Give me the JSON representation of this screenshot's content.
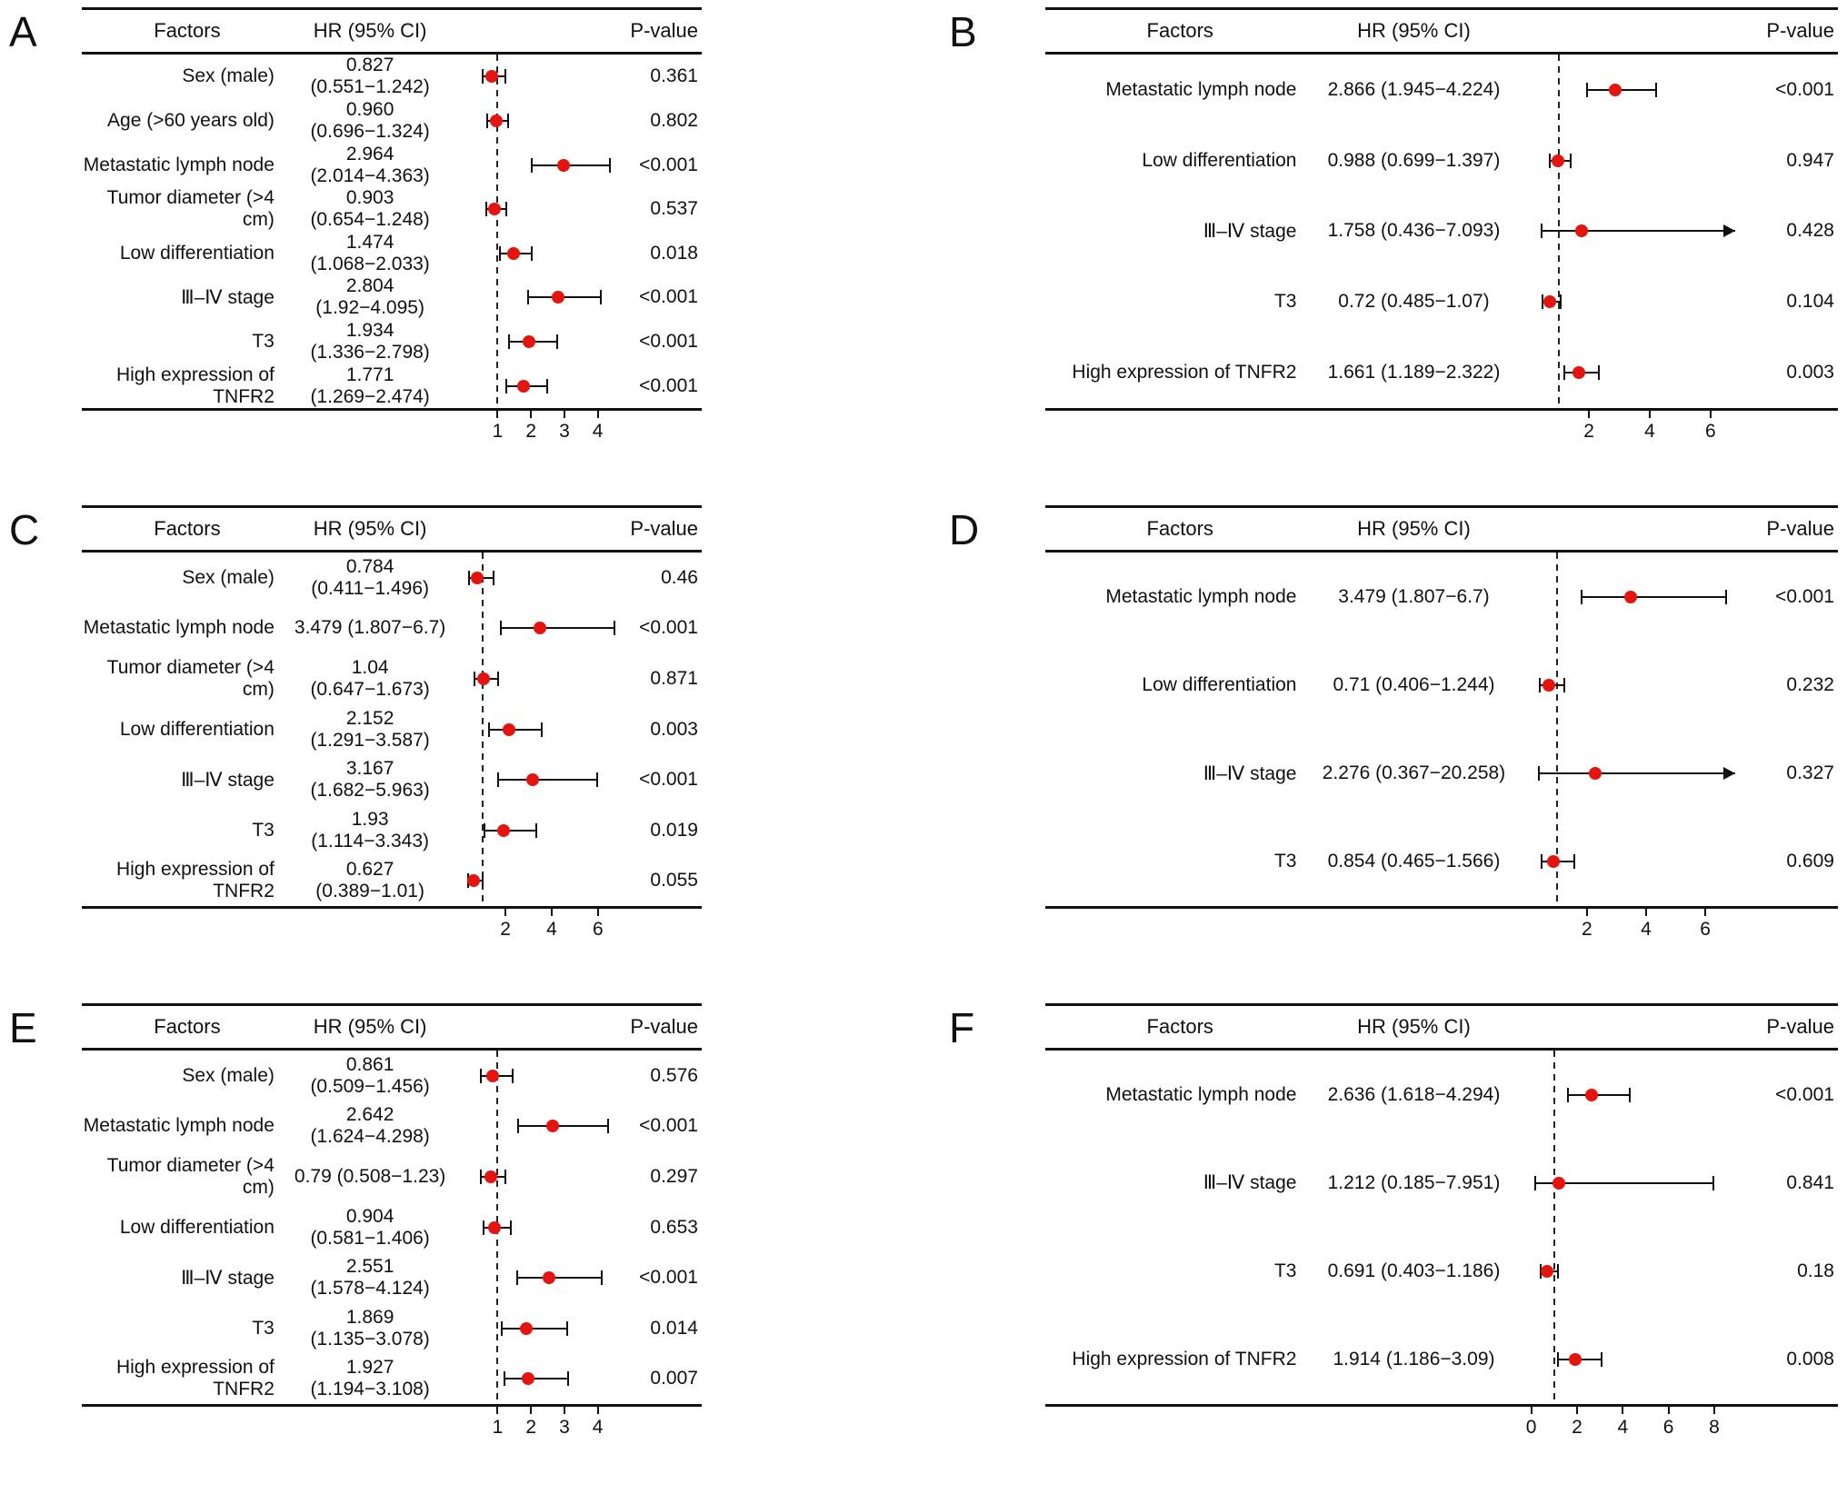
{
  "colors": {
    "dot": "#e8130c",
    "line": "#111111",
    "text": "#111111",
    "background": "#ffffff",
    "reference_line": "#222222"
  },
  "chart_data": [
    {
      "type": "forest",
      "panel": "A",
      "columns": [
        "Factors",
        "HR (95% CI)",
        "P-value"
      ],
      "axis": {
        "min": -0.5,
        "max": 4.7,
        "ticks": [
          1,
          2,
          3,
          4
        ],
        "ref": 1
      },
      "rows": [
        {
          "factor": "Sex (male)",
          "hr_label": "0.827 (0.551−1.242)",
          "hr": 0.827,
          "ci_low": 0.551,
          "ci_high": 1.242,
          "p_value": "0.361"
        },
        {
          "factor": "Age (>60 years old)",
          "hr_label": "0.960 (0.696−1.324)",
          "hr": 0.96,
          "ci_low": 0.696,
          "ci_high": 1.324,
          "p_value": "0.802"
        },
        {
          "factor": "Metastatic lymph node",
          "hr_label": "2.964 (2.014−4.363)",
          "hr": 2.964,
          "ci_low": 2.014,
          "ci_high": 4.363,
          "p_value": "<0.001"
        },
        {
          "factor": "Tumor diameter (>4 cm)",
          "hr_label": "0.903 (0.654−1.248)",
          "hr": 0.903,
          "ci_low": 0.654,
          "ci_high": 1.248,
          "p_value": "0.537"
        },
        {
          "factor": "Low differentiation",
          "hr_label": "1.474 (1.068−2.033)",
          "hr": 1.474,
          "ci_low": 1.068,
          "ci_high": 2.033,
          "p_value": "0.018"
        },
        {
          "factor": "Ⅲ–Ⅳ stage",
          "hr_label": "2.804 (1.92−4.095)",
          "hr": 2.804,
          "ci_low": 1.92,
          "ci_high": 4.095,
          "p_value": "<0.001"
        },
        {
          "factor": "T3",
          "hr_label": "1.934 (1.336−2.798)",
          "hr": 1.934,
          "ci_low": 1.336,
          "ci_high": 2.798,
          "p_value": "<0.001"
        },
        {
          "factor": "High expression of TNFR2",
          "hr_label": "1.771 (1.269−2.474)",
          "hr": 1.771,
          "ci_low": 1.269,
          "ci_high": 2.474,
          "p_value": "<0.001"
        }
      ]
    },
    {
      "type": "forest",
      "panel": "B",
      "columns": [
        "Factors",
        "HR (95% CI)",
        "P-value"
      ],
      "axis": {
        "min": -0.5,
        "max": 6.8,
        "ticks": [
          2,
          4,
          6
        ],
        "ref": 1
      },
      "rows": [
        {
          "factor": "Metastatic lymph node",
          "hr_label": "2.866 (1.945−4.224)",
          "hr": 2.866,
          "ci_low": 1.945,
          "ci_high": 4.224,
          "p_value": "<0.001"
        },
        {
          "factor": "Low differentiation",
          "hr_label": "0.988 (0.699−1.397)",
          "hr": 0.988,
          "ci_low": 0.699,
          "ci_high": 1.397,
          "p_value": "0.947"
        },
        {
          "factor": "Ⅲ–Ⅳ stage",
          "hr_label": "1.758 (0.436−7.093)",
          "hr": 1.758,
          "ci_low": 0.436,
          "ci_high": 7.093,
          "p_value": "0.428"
        },
        {
          "factor": "T3",
          "hr_label": "0.72 (0.485−1.07)",
          "hr": 0.72,
          "ci_low": 0.485,
          "ci_high": 1.07,
          "p_value": "0.104"
        },
        {
          "factor": "High expression of TNFR2",
          "hr_label": "1.661 (1.189−2.322)",
          "hr": 1.661,
          "ci_low": 1.189,
          "ci_high": 2.322,
          "p_value": "0.003"
        }
      ]
    },
    {
      "type": "forest",
      "panel": "C",
      "columns": [
        "Factors",
        "HR (95% CI)",
        "P-value"
      ],
      "axis": {
        "min": -0.5,
        "max": 7.0,
        "ticks": [
          2,
          4,
          6
        ],
        "ref": 1
      },
      "rows": [
        {
          "factor": "Sex (male)",
          "hr_label": "0.784 (0.411−1.496)",
          "hr": 0.784,
          "ci_low": 0.411,
          "ci_high": 1.496,
          "p_value": "0.46"
        },
        {
          "factor": "Metastatic lymph node",
          "hr_label": "3.479 (1.807−6.7)",
          "hr": 3.479,
          "ci_low": 1.807,
          "ci_high": 6.7,
          "p_value": "<0.001"
        },
        {
          "factor": "Tumor diameter (>4 cm)",
          "hr_label": "1.04 (0.647−1.673)",
          "hr": 1.04,
          "ci_low": 0.647,
          "ci_high": 1.673,
          "p_value": "0.871"
        },
        {
          "factor": "Low differentiation",
          "hr_label": "2.152 (1.291−3.587)",
          "hr": 2.152,
          "ci_low": 1.291,
          "ci_high": 3.587,
          "p_value": "0.003"
        },
        {
          "factor": "Ⅲ–Ⅳ stage",
          "hr_label": "3.167 (1.682−5.963)",
          "hr": 3.167,
          "ci_low": 1.682,
          "ci_high": 5.963,
          "p_value": "<0.001"
        },
        {
          "factor": "T3",
          "hr_label": "1.93 (1.114−3.343)",
          "hr": 1.93,
          "ci_low": 1.114,
          "ci_high": 3.343,
          "p_value": "0.019"
        },
        {
          "factor": "High expression of TNFR2",
          "hr_label": "0.627 (0.389−1.01)",
          "hr": 0.627,
          "ci_low": 0.389,
          "ci_high": 1.01,
          "p_value": "0.055"
        }
      ]
    },
    {
      "type": "forest",
      "panel": "D",
      "columns": [
        "Factors",
        "HR (95% CI)",
        "P-value"
      ],
      "axis": {
        "min": -0.5,
        "max": 7.0,
        "ticks": [
          2,
          4,
          6
        ],
        "ref": 1
      },
      "rows": [
        {
          "factor": "Metastatic lymph node",
          "hr_label": "3.479 (1.807−6.7)",
          "hr": 3.479,
          "ci_low": 1.807,
          "ci_high": 6.7,
          "p_value": "<0.001"
        },
        {
          "factor": "Low differentiation",
          "hr_label": "0.71 (0.406−1.244)",
          "hr": 0.71,
          "ci_low": 0.406,
          "ci_high": 1.244,
          "p_value": "0.232"
        },
        {
          "factor": "Ⅲ–Ⅳ stage",
          "hr_label": "2.276 (0.367−20.258)",
          "hr": 2.276,
          "ci_low": 0.367,
          "ci_high": 20.258,
          "p_value": "0.327"
        },
        {
          "factor": "T3",
          "hr_label": "0.854 (0.465−1.566)",
          "hr": 0.854,
          "ci_low": 0.465,
          "ci_high": 1.566,
          "p_value": "0.609"
        }
      ]
    },
    {
      "type": "forest",
      "panel": "E",
      "columns": [
        "Factors",
        "HR (95% CI)",
        "P-value"
      ],
      "axis": {
        "min": -0.5,
        "max": 4.7,
        "ticks": [
          1,
          2,
          3,
          4
        ],
        "ref": 1
      },
      "rows": [
        {
          "factor": "Sex (male)",
          "hr_label": "0.861 (0.509−1.456)",
          "hr": 0.861,
          "ci_low": 0.509,
          "ci_high": 1.456,
          "p_value": "0.576"
        },
        {
          "factor": "Metastatic lymph node",
          "hr_label": "2.642 (1.624−4.298)",
          "hr": 2.642,
          "ci_low": 1.624,
          "ci_high": 4.298,
          "p_value": "<0.001"
        },
        {
          "factor": "Tumor diameter (>4 cm)",
          "hr_label": "0.79 (0.508−1.23)",
          "hr": 0.79,
          "ci_low": 0.508,
          "ci_high": 1.23,
          "p_value": "0.297"
        },
        {
          "factor": "Low differentiation",
          "hr_label": "0.904 (0.581−1.406)",
          "hr": 0.904,
          "ci_low": 0.581,
          "ci_high": 1.406,
          "p_value": "0.653"
        },
        {
          "factor": "Ⅲ–Ⅳ stage",
          "hr_label": "2.551 (1.578−4.124)",
          "hr": 2.551,
          "ci_low": 1.578,
          "ci_high": 4.124,
          "p_value": "<0.001"
        },
        {
          "factor": "T3",
          "hr_label": "1.869 (1.135−3.078)",
          "hr": 1.869,
          "ci_low": 1.135,
          "ci_high": 3.078,
          "p_value": "0.014"
        },
        {
          "factor": "High expression of TNFR2",
          "hr_label": "1.927 (1.194−3.108)",
          "hr": 1.927,
          "ci_low": 1.194,
          "ci_high": 3.108,
          "p_value": "0.007"
        }
      ]
    },
    {
      "type": "forest",
      "panel": "F",
      "columns": [
        "Factors",
        "HR (95% CI)",
        "P-value"
      ],
      "axis": {
        "min": -0.8,
        "max": 8.9,
        "ticks": [
          0,
          2,
          4,
          6,
          8
        ],
        "ref": 1
      },
      "rows": [
        {
          "factor": "Metastatic lymph node",
          "hr_label": "2.636 (1.618−4.294)",
          "hr": 2.636,
          "ci_low": 1.618,
          "ci_high": 4.294,
          "p_value": "<0.001"
        },
        {
          "factor": "Ⅲ–Ⅳ stage",
          "hr_label": "1.212 (0.185−7.951)",
          "hr": 1.212,
          "ci_low": 0.185,
          "ci_high": 7.951,
          "p_value": "0.841"
        },
        {
          "factor": "T3",
          "hr_label": "0.691 (0.403−1.186)",
          "hr": 0.691,
          "ci_low": 0.403,
          "ci_high": 1.186,
          "p_value": "0.18"
        },
        {
          "factor": "High expression of TNFR2",
          "hr_label": "1.914 (1.186−3.09)",
          "hr": 1.914,
          "ci_low": 1.186,
          "ci_high": 3.09,
          "p_value": "0.008"
        }
      ]
    }
  ]
}
